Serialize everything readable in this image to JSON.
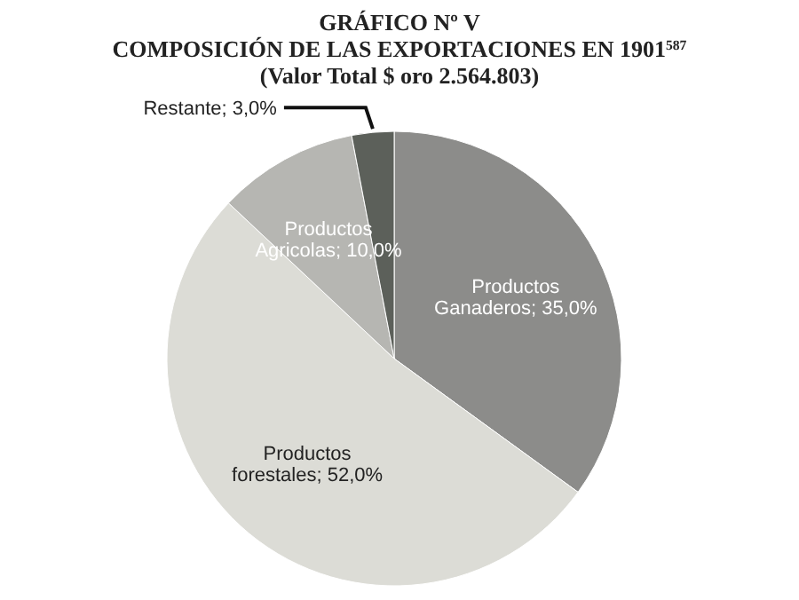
{
  "chart_data": {
    "type": "pie",
    "title": "GRÁFICO Nº V\nCOMPOSICIÓN DE LAS EXPORTACIONES EN 1901$^{587}$",
    "subtitle": "(Valor Total $ oro 2.564.803)",
    "categories": [
      "Productos Ganaderos",
      "Productos forestales",
      "Productos Agricolas",
      "Restante"
    ],
    "values": [
      35,
      52,
      10,
      3
    ],
    "value_labels": [
      "35,0%",
      "52,0%",
      "10,0%",
      "3,0%"
    ],
    "colors": [
      "#8c8c8a",
      "#dcdcd6",
      "#b6b6b2",
      "#5c605a"
    ]
  }
}
